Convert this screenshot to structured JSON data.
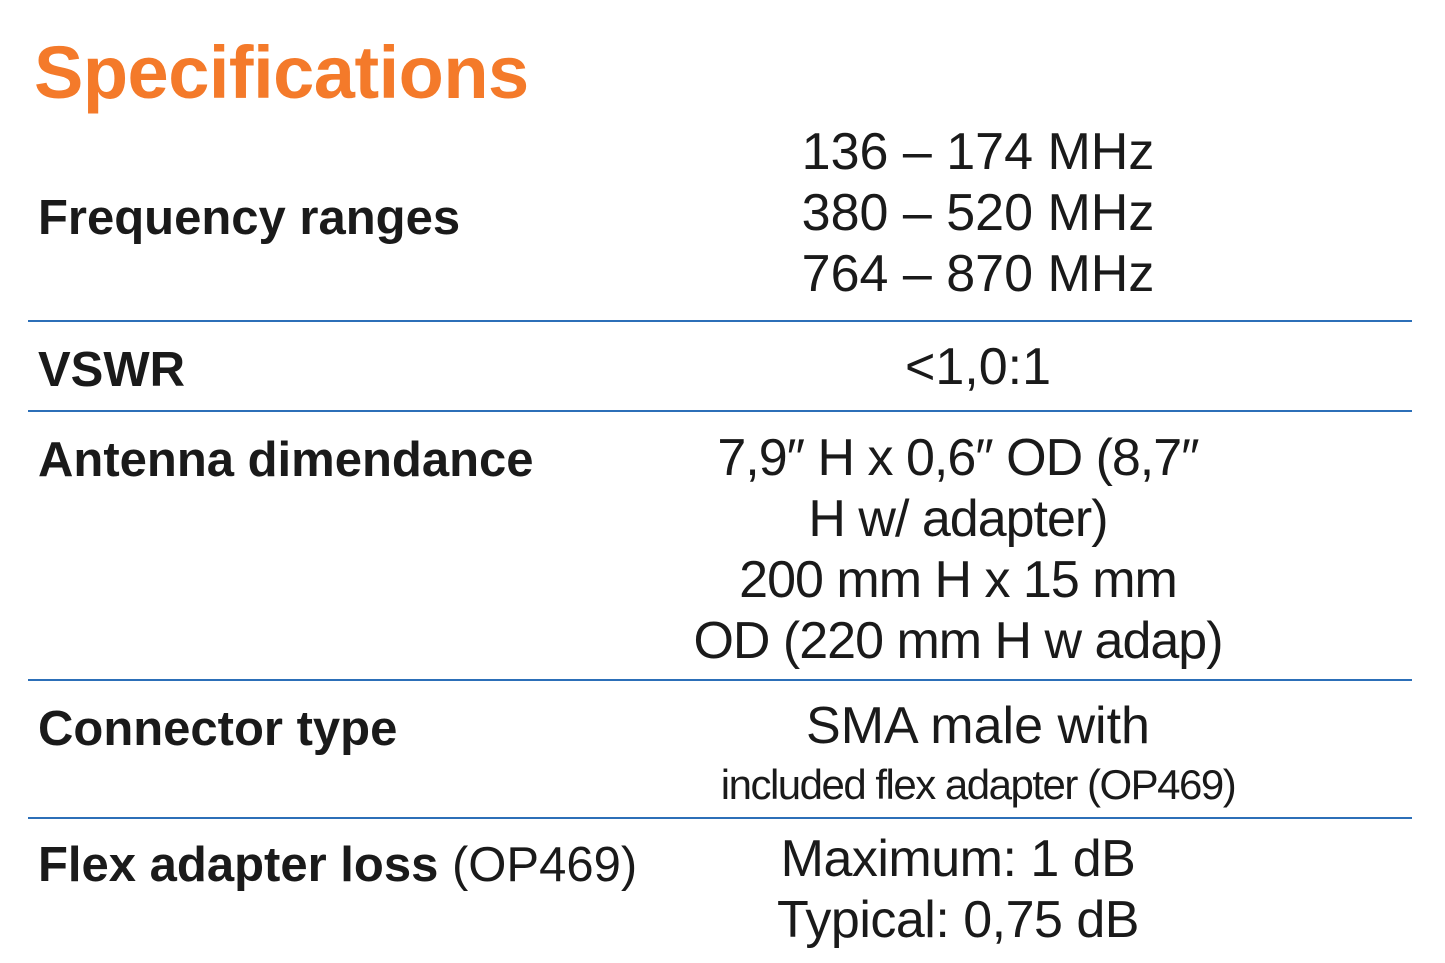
{
  "title": "Specifications",
  "colors": {
    "title": "#f47a2a",
    "divider": "#2c6fb8",
    "text": "#1a1a1a"
  },
  "specs": [
    {
      "label": "Frequency ranges",
      "note": "",
      "values": [
        "136 – 174 MHz",
        "380 – 520 MHz",
        "764 – 870 MHz"
      ]
    },
    {
      "label": "VSWR",
      "note": "",
      "values": [
        "<1,0:1"
      ]
    },
    {
      "label": "Antenna dimendance",
      "note": "",
      "values": [
        "7,9″ H x 0,6″ OD (8,7″",
        "H w/ adapter)",
        "200 mm H x 15 mm",
        "OD (220 mm H w adap)"
      ]
    },
    {
      "label": "Connector type",
      "note": "",
      "values": [
        "SMA male with",
        "included flex adapter (OP469)"
      ]
    },
    {
      "label": "Flex adapter loss",
      "note": "(OP469)",
      "values": [
        "Maximum: 1 dB",
        "Typical: 0,75 dB"
      ]
    }
  ]
}
